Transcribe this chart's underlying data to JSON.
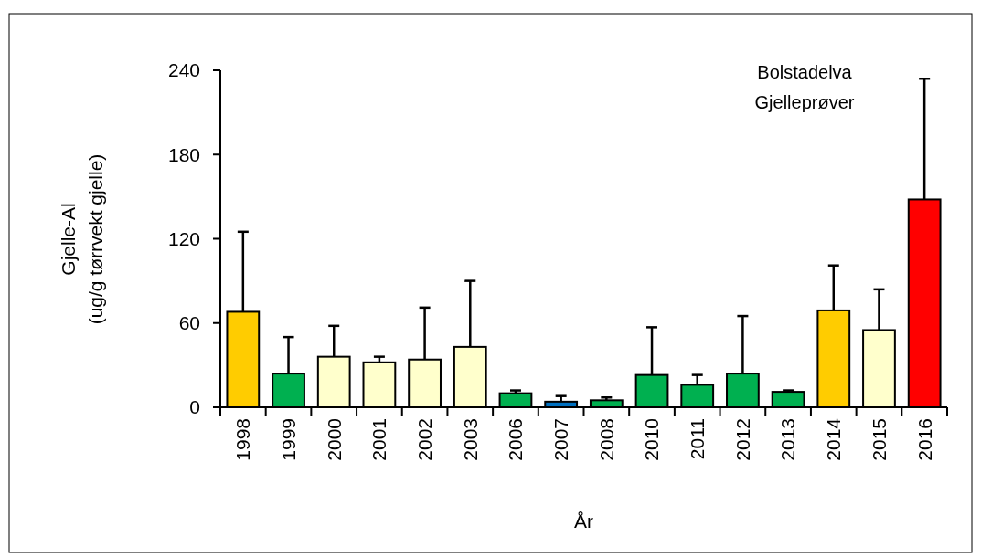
{
  "chart_data": {
    "type": "bar",
    "xlabel": "År",
    "ylabel": "Gjelle-Al\n(ug/g tørrvekt gjelle)",
    "annotations": [
      "Bolstadelva\nGjelleprøver"
    ],
    "categories": [
      "1998",
      "1999",
      "2000",
      "2001",
      "2002",
      "2003",
      "2006",
      "2007",
      "2008",
      "2010",
      "2011",
      "2012",
      "2013",
      "2014",
      "2015",
      "2016"
    ],
    "values": [
      68,
      24,
      36,
      32,
      34,
      43,
      10,
      4,
      5,
      23,
      16,
      24,
      11,
      69,
      55,
      148
    ],
    "colors": [
      "#ffcc00",
      "#00b050",
      "#ffffcc",
      "#ffffcc",
      "#ffffcc",
      "#ffffcc",
      "#00b050",
      "#0070c0",
      "#00b050",
      "#00b050",
      "#00b050",
      "#00b050",
      "#00b050",
      "#ffcc00",
      "#ffffcc",
      "#ff0000"
    ],
    "errors": [
      [
        68,
        125
      ],
      [
        24,
        50
      ],
      [
        36,
        58
      ],
      [
        32,
        36
      ],
      [
        34,
        71
      ],
      [
        43,
        90
      ],
      [
        10,
        12
      ],
      [
        4,
        8
      ],
      [
        5,
        7
      ],
      [
        23,
        57
      ],
      [
        16,
        23
      ],
      [
        24,
        65
      ],
      [
        11,
        12
      ],
      [
        69,
        101
      ],
      [
        55,
        84
      ],
      [
        148,
        234
      ]
    ],
    "ylim": [
      0,
      240
    ],
    "yticks": [
      0,
      60,
      120,
      180,
      240
    ]
  }
}
